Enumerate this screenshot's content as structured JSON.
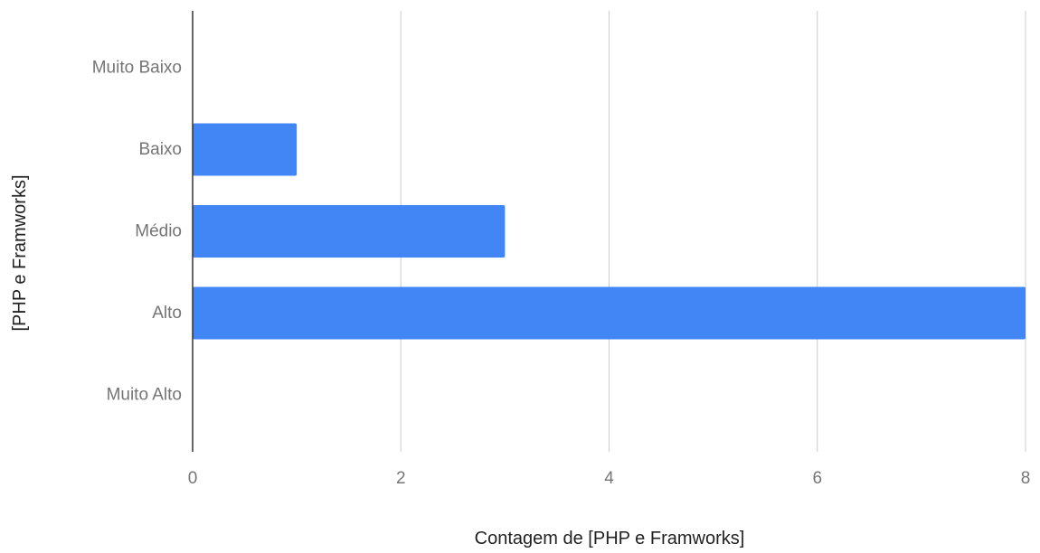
{
  "chart_data": {
    "type": "bar",
    "orientation": "horizontal",
    "title": "",
    "categories": [
      "Muito Baixo",
      "Baixo",
      "Médio",
      "Alto",
      "Muito Alto"
    ],
    "values": [
      0,
      1,
      3,
      8,
      0
    ],
    "xlabel": "Contagem de [PHP e Framworks]",
    "ylabel": "[PHP e Framworks]",
    "xlim": [
      0,
      8
    ],
    "xticks": [
      0,
      2,
      4,
      6,
      8
    ],
    "grid": true,
    "legend": "none",
    "bar_color": "#4285f4"
  }
}
